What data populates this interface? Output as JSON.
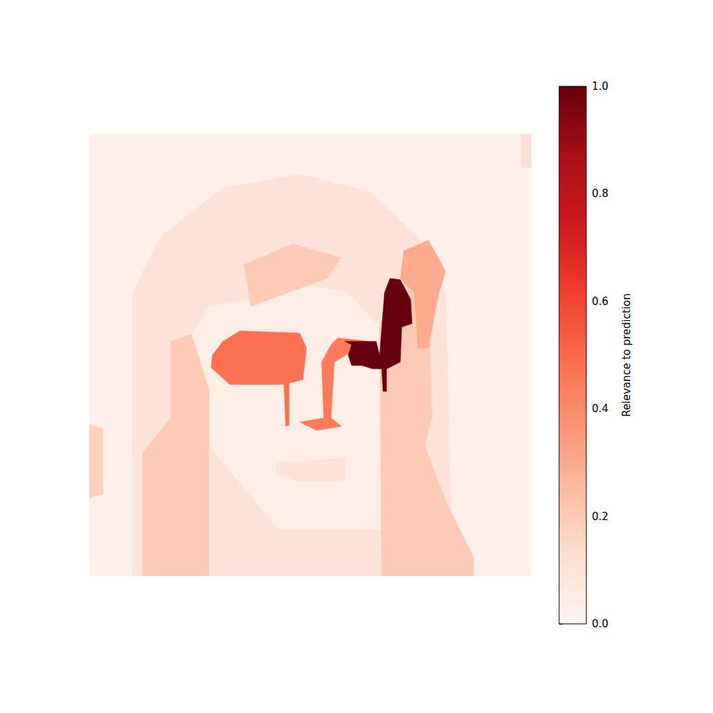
{
  "chart_data": {
    "type": "heatmap",
    "tick_labels": false,
    "xlim": [
      0,
      128
    ],
    "ylim": [
      0,
      128
    ],
    "segments": [
      {
        "value": 0.03,
        "polygon": [
          [
            0,
            0
          ],
          [
            128,
            0
          ],
          [
            128,
            128
          ],
          [
            0,
            128
          ]
        ]
      },
      {
        "value": 0.1,
        "polygon": [
          [
            12.5,
            128
          ],
          [
            12.5,
            46.0
          ],
          [
            20.6,
            29.8
          ],
          [
            38.7,
            15.7
          ],
          [
            60.9,
            11.7
          ],
          [
            81.0,
            16.7
          ],
          [
            95.2,
            29.8
          ],
          [
            103.2,
            46.0
          ],
          [
            105.2,
            128
          ]
        ]
      },
      {
        "value": 0.04,
        "polygon": [
          [
            34.7,
            74.2
          ],
          [
            29.6,
            58.1
          ],
          [
            34.7,
            50.0
          ],
          [
            46.8,
            48.0
          ],
          [
            62.9,
            43.9
          ],
          [
            75.0,
            46.0
          ],
          [
            84.1,
            56.0
          ],
          [
            84.7,
            114.5
          ],
          [
            54.8,
            114.5
          ],
          [
            34.7,
            90.3
          ]
        ]
      },
      {
        "value": 0.2,
        "polygon": [
          [
            15.5,
            128
          ],
          [
            15.5,
            92.3
          ],
          [
            23.6,
            82.3
          ],
          [
            23.6,
            60.1
          ],
          [
            29.6,
            58.1
          ],
          [
            34.7,
            74.2
          ],
          [
            34.7,
            128
          ]
        ]
      },
      {
        "value": 0.2,
        "polygon": [
          [
            44.8,
            37.9
          ],
          [
            58.9,
            31.9
          ],
          [
            73.0,
            35.9
          ],
          [
            68.9,
            41.9
          ],
          [
            46.8,
            50.0
          ]
        ]
      },
      {
        "value": 0.2,
        "polygon": [
          [
            84.1,
            56.0
          ],
          [
            87.1,
            46.0
          ],
          [
            93.1,
            41.9
          ],
          [
            98.2,
            46.0
          ],
          [
            99.2,
            82.3
          ],
          [
            97.2,
            90.3
          ],
          [
            103.2,
            106.4
          ],
          [
            111.3,
            122.6
          ],
          [
            111.3,
            128
          ],
          [
            84.7,
            128
          ]
        ]
      },
      {
        "value": 0.3,
        "polygon": [
          [
            91.1,
            33.9
          ],
          [
            98.2,
            30.8
          ],
          [
            103.2,
            39.9
          ],
          [
            101.2,
            46.0
          ],
          [
            98.2,
            62.1
          ],
          [
            95.2,
            62.1
          ],
          [
            94.1,
            46.0
          ],
          [
            90.1,
            41.9
          ]
        ]
      },
      {
        "value": 0.48,
        "polygon": [
          [
            35.7,
            64.1
          ],
          [
            38.7,
            60.1
          ],
          [
            43.7,
            57.1
          ],
          [
            60.9,
            57.7
          ],
          [
            62.9,
            62.1
          ],
          [
            61.9,
            71.2
          ],
          [
            57.9,
            72.2
          ],
          [
            57.9,
            84.3
          ],
          [
            56.9,
            84.7
          ],
          [
            56.4,
            72.6
          ],
          [
            40.7,
            72.6
          ],
          [
            35.3,
            67.7
          ]
        ]
      },
      {
        "value": 0.45,
        "polygon": [
          [
            72.0,
            59.1
          ],
          [
            81.0,
            60.1
          ],
          [
            76.0,
            63.1
          ],
          [
            71.0,
            66.1
          ],
          [
            70.0,
            82.3
          ],
          [
            73.0,
            84.7
          ],
          [
            65.9,
            85.9
          ],
          [
            60.9,
            83.5
          ],
          [
            67.9,
            82.3
          ],
          [
            67.3,
            66.1
          ],
          [
            70.0,
            61.1
          ]
        ]
      },
      {
        "value": 1.0,
        "polygon": [
          [
            87.1,
            41.9
          ],
          [
            90.1,
            42.3
          ],
          [
            93.1,
            48.0
          ],
          [
            93.5,
            55.0
          ],
          [
            90.5,
            56.0
          ],
          [
            90.1,
            66.1
          ],
          [
            86.1,
            68.1
          ],
          [
            86.1,
            74.6
          ],
          [
            85.1,
            74.6
          ],
          [
            84.7,
            68.1
          ],
          [
            82.1,
            68.1
          ],
          [
            79.0,
            67.1
          ],
          [
            76.0,
            67.1
          ],
          [
            75.0,
            64.1
          ],
          [
            76.0,
            61.1
          ],
          [
            74.0,
            60.1
          ],
          [
            83.1,
            60.1
          ],
          [
            84.1,
            64.1
          ],
          [
            85.5,
            46.0
          ]
        ]
      },
      {
        "value": 0.1,
        "polygon": [
          [
            53.8,
            95.4
          ],
          [
            74.0,
            93.9
          ],
          [
            74.0,
            100.4
          ],
          [
            60.9,
            100.8
          ],
          [
            54.4,
            98.4
          ]
        ]
      },
      {
        "value": 0.12,
        "polygon": [
          [
            125.0,
            0
          ],
          [
            128,
            0
          ],
          [
            128,
            9.7
          ],
          [
            125.0,
            9.7
          ]
        ]
      },
      {
        "value": 0.18,
        "polygon": [
          [
            0,
            84.3
          ],
          [
            4.0,
            85.3
          ],
          [
            4.0,
            104.4
          ],
          [
            0,
            105.4
          ]
        ]
      }
    ],
    "colorbar": {
      "label": "Relevance to prediction",
      "lim": [
        0,
        1
      ],
      "ticks": [
        {
          "value": 0,
          "label": "0.0"
        },
        {
          "value": 0.2,
          "label": "0.2"
        },
        {
          "value": 0.4,
          "label": "0.4"
        },
        {
          "value": 0.6,
          "label": "0.6"
        },
        {
          "value": 0.8,
          "label": "0.8"
        },
        {
          "value": 1,
          "label": "1.0"
        }
      ]
    }
  }
}
